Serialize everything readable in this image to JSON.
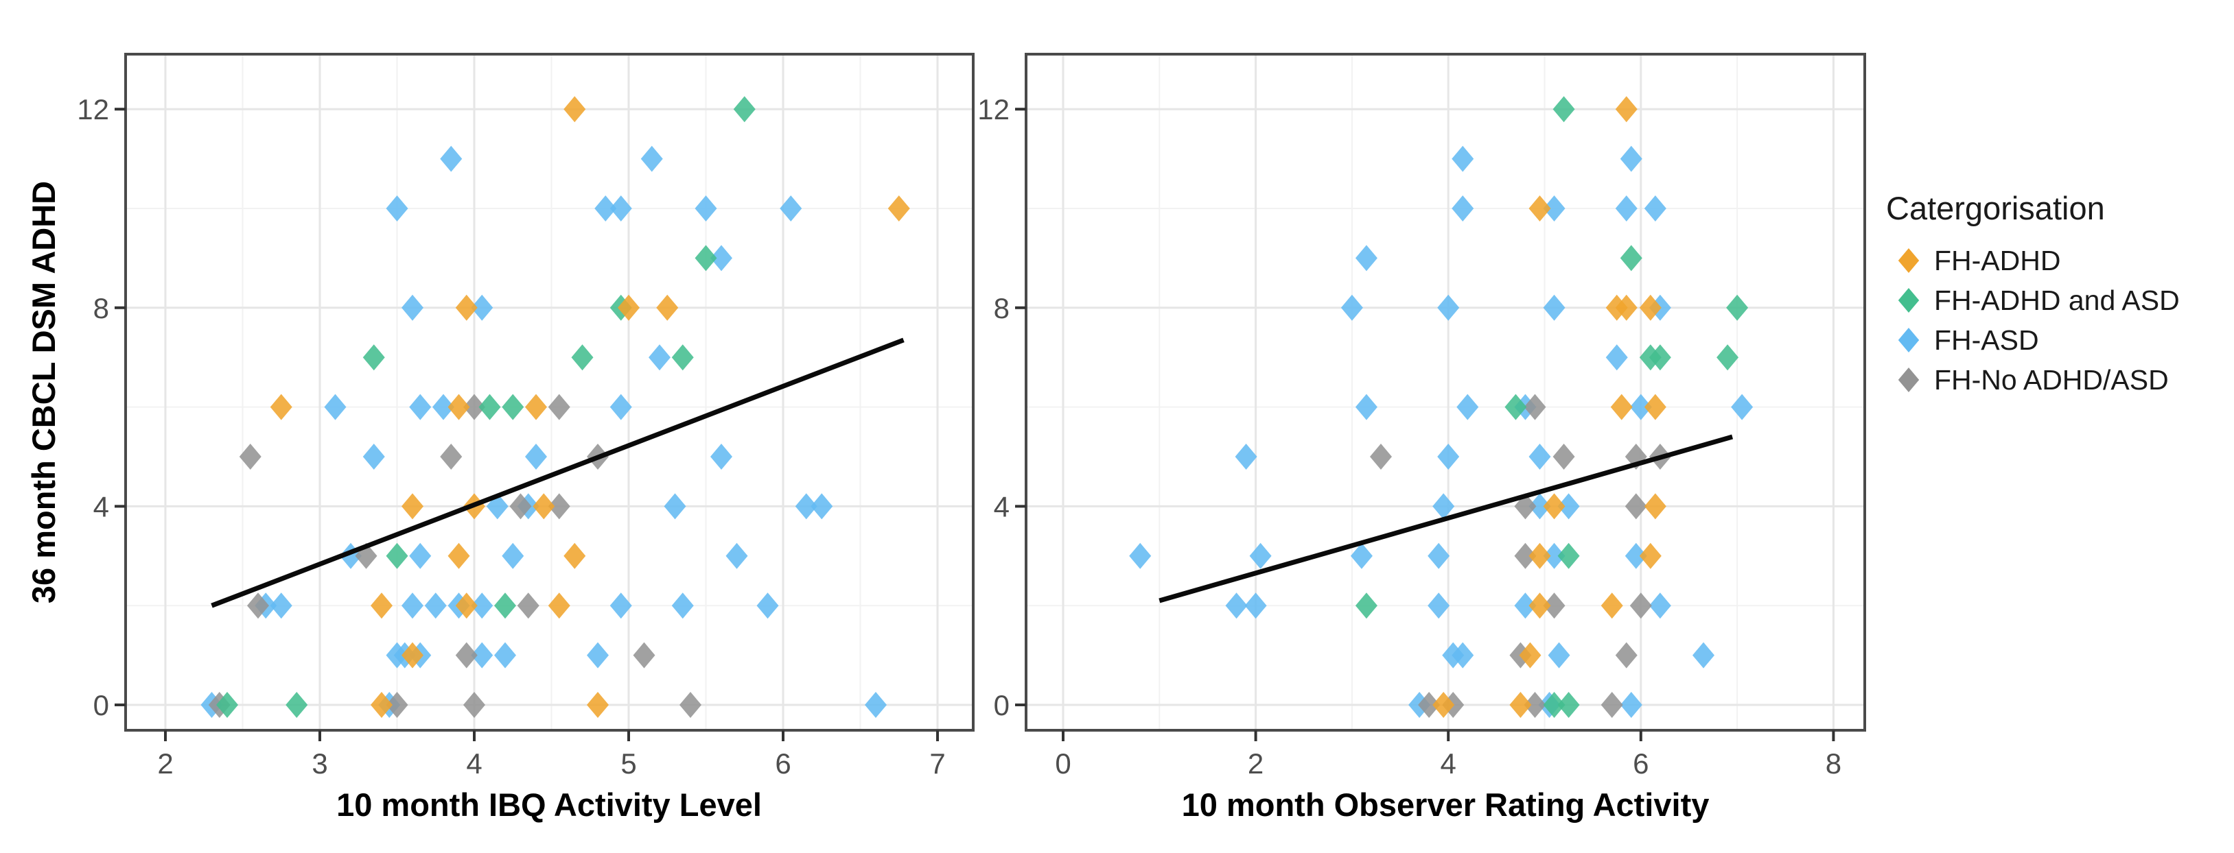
{
  "figure": {
    "background": "#ffffff"
  },
  "legend": {
    "title": "Catergorisation",
    "items": [
      {
        "label": "FH-ADHD",
        "category": "FH-ADHD"
      },
      {
        "label": "FH-ADHD and ASD",
        "category": "FH-ADHD and ASD"
      },
      {
        "label": "FH-ASD",
        "category": "FH-ASD"
      },
      {
        "label": "FH-No ADHD/ASD",
        "category": "FH-No ADHD/ASD"
      }
    ]
  },
  "colors": {
    "FH-ADHD": "#F0A42D",
    "FH-ADHD and ASD": "#43BE8E",
    "FH-ASD": "#63BAF2",
    "FH-No ADHD/ASD": "#939393",
    "trend_line": "#0a0a0a",
    "panel_border": "#4a4a4a",
    "grid_major": "#e6e6e6",
    "grid_minor": "#f2f2f2",
    "tick_text": "#4d4d4d",
    "axis_title": "#000000"
  },
  "chart_data": [
    {
      "type": "scatter",
      "panel": "left",
      "title": "",
      "xlabel": "10 month IBQ Activity Level",
      "ylabel": "36 month CBCL DSM ADHD",
      "xlim": [
        1.74,
        7.23
      ],
      "ylim": [
        -0.55,
        13.1
      ],
      "xticks": [
        2,
        3,
        4,
        5,
        6,
        7
      ],
      "xminor": [
        2.5,
        3.5,
        4.5,
        5.5,
        6.5
      ],
      "yticks": [
        0,
        4,
        8,
        12
      ],
      "yminor": [
        2,
        6,
        10
      ],
      "grid": true,
      "legend_position": "right",
      "trend_line": {
        "x1": 2.3,
        "y1": 2.0,
        "x2": 6.78,
        "y2": 7.35
      },
      "series": [
        {
          "name": "FH-ASD",
          "points": [
            [
              3.85,
              11
            ],
            [
              5.15,
              11
            ],
            [
              3.5,
              10
            ],
            [
              4.85,
              10
            ],
            [
              4.95,
              10
            ],
            [
              5.5,
              10
            ],
            [
              6.05,
              10
            ],
            [
              5.6,
              9
            ],
            [
              3.6,
              8
            ],
            [
              4.05,
              8
            ],
            [
              5.2,
              7
            ],
            [
              3.1,
              6
            ],
            [
              3.65,
              6
            ],
            [
              3.8,
              6
            ],
            [
              4.95,
              6
            ],
            [
              3.35,
              5
            ],
            [
              4.4,
              5
            ],
            [
              5.6,
              5
            ],
            [
              4.15,
              4
            ],
            [
              4.35,
              4
            ],
            [
              5.3,
              4
            ],
            [
              6.15,
              4
            ],
            [
              6.25,
              4
            ],
            [
              3.2,
              3
            ],
            [
              3.65,
              3
            ],
            [
              4.25,
              3
            ],
            [
              5.7,
              3
            ],
            [
              2.65,
              2
            ],
            [
              2.75,
              2
            ],
            [
              3.6,
              2
            ],
            [
              3.75,
              2
            ],
            [
              3.9,
              2
            ],
            [
              4.05,
              2
            ],
            [
              4.95,
              2
            ],
            [
              5.35,
              2
            ],
            [
              5.9,
              2
            ],
            [
              3.5,
              1
            ],
            [
              3.55,
              1
            ],
            [
              3.65,
              1
            ],
            [
              4.05,
              1
            ],
            [
              4.2,
              1
            ],
            [
              4.8,
              1
            ],
            [
              2.3,
              0
            ],
            [
              3.45,
              0
            ],
            [
              6.6,
              0
            ]
          ]
        },
        {
          "name": "FH-No ADHD/ASD",
          "points": [
            [
              4.0,
              6
            ],
            [
              4.55,
              6
            ],
            [
              2.55,
              5
            ],
            [
              3.85,
              5
            ],
            [
              4.8,
              5
            ],
            [
              4.3,
              4
            ],
            [
              4.55,
              4
            ],
            [
              3.3,
              3
            ],
            [
              2.6,
              2
            ],
            [
              4.35,
              2
            ],
            [
              3.95,
              1
            ],
            [
              5.1,
              1
            ],
            [
              2.35,
              0
            ],
            [
              3.5,
              0
            ],
            [
              4.0,
              0
            ],
            [
              5.4,
              0
            ]
          ]
        },
        {
          "name": "FH-ADHD and ASD",
          "points": [
            [
              5.75,
              12
            ],
            [
              5.5,
              9
            ],
            [
              4.95,
              8
            ],
            [
              3.35,
              7
            ],
            [
              4.7,
              7
            ],
            [
              5.35,
              7
            ],
            [
              4.1,
              6
            ],
            [
              4.25,
              6
            ],
            [
              3.5,
              3
            ],
            [
              4.2,
              2
            ],
            [
              2.4,
              0
            ],
            [
              2.85,
              0
            ]
          ]
        },
        {
          "name": "FH-ADHD",
          "points": [
            [
              4.65,
              12
            ],
            [
              6.75,
              10
            ],
            [
              3.95,
              8
            ],
            [
              5.0,
              8
            ],
            [
              5.25,
              8
            ],
            [
              2.75,
              6
            ],
            [
              3.9,
              6
            ],
            [
              4.4,
              6
            ],
            [
              3.6,
              4
            ],
            [
              4.0,
              4
            ],
            [
              4.45,
              4
            ],
            [
              3.9,
              3
            ],
            [
              4.65,
              3
            ],
            [
              3.4,
              2
            ],
            [
              3.95,
              2
            ],
            [
              4.55,
              2
            ],
            [
              3.6,
              1
            ],
            [
              3.4,
              0
            ],
            [
              4.8,
              0
            ]
          ]
        }
      ]
    },
    {
      "type": "scatter",
      "panel": "right",
      "title": "",
      "xlabel": "10 month Observer Rating Activity",
      "ylabel": "",
      "xlim": [
        -0.39,
        8.34
      ],
      "ylim": [
        -0.55,
        13.1
      ],
      "xticks": [
        0,
        2,
        4,
        6,
        8
      ],
      "xminor": [
        1,
        3,
        5,
        7
      ],
      "yticks": [
        0,
        4,
        8,
        12
      ],
      "yminor": [
        2,
        6,
        10
      ],
      "grid": true,
      "trend_line": {
        "x1": 1.0,
        "y1": 2.1,
        "x2": 6.95,
        "y2": 5.4
      },
      "series": [
        {
          "name": "FH-ASD",
          "points": [
            [
              4.15,
              11
            ],
            [
              5.9,
              11
            ],
            [
              4.15,
              10
            ],
            [
              5.1,
              10
            ],
            [
              5.85,
              10
            ],
            [
              6.15,
              10
            ],
            [
              3.15,
              9
            ],
            [
              3.0,
              8
            ],
            [
              4.0,
              8
            ],
            [
              5.1,
              8
            ],
            [
              6.2,
              8
            ],
            [
              5.75,
              7
            ],
            [
              3.15,
              6
            ],
            [
              4.2,
              6
            ],
            [
              4.8,
              6
            ],
            [
              6.0,
              6
            ],
            [
              7.05,
              6
            ],
            [
              1.9,
              5
            ],
            [
              4.0,
              5
            ],
            [
              4.95,
              5
            ],
            [
              3.95,
              4
            ],
            [
              4.95,
              4
            ],
            [
              5.25,
              4
            ],
            [
              0.8,
              3
            ],
            [
              2.05,
              3
            ],
            [
              3.1,
              3
            ],
            [
              3.9,
              3
            ],
            [
              5.1,
              3
            ],
            [
              5.95,
              3
            ],
            [
              1.8,
              2
            ],
            [
              2.0,
              2
            ],
            [
              3.9,
              2
            ],
            [
              4.8,
              2
            ],
            [
              6.2,
              2
            ],
            [
              4.05,
              1
            ],
            [
              4.15,
              1
            ],
            [
              5.15,
              1
            ],
            [
              6.65,
              1
            ],
            [
              3.7,
              0
            ],
            [
              5.05,
              0
            ],
            [
              5.9,
              0
            ]
          ]
        },
        {
          "name": "FH-No ADHD/ASD",
          "points": [
            [
              4.9,
              6
            ],
            [
              3.3,
              5
            ],
            [
              5.2,
              5
            ],
            [
              5.95,
              5
            ],
            [
              6.2,
              5
            ],
            [
              4.8,
              4
            ],
            [
              5.95,
              4
            ],
            [
              4.8,
              3
            ],
            [
              5.1,
              2
            ],
            [
              6.0,
              2
            ],
            [
              4.75,
              1
            ],
            [
              5.85,
              1
            ],
            [
              3.8,
              0
            ],
            [
              4.05,
              0
            ],
            [
              4.9,
              0
            ],
            [
              5.7,
              0
            ]
          ]
        },
        {
          "name": "FH-ADHD and ASD",
          "points": [
            [
              5.2,
              12
            ],
            [
              5.9,
              9
            ],
            [
              7.0,
              8
            ],
            [
              6.1,
              7
            ],
            [
              6.2,
              7
            ],
            [
              6.9,
              7
            ],
            [
              4.7,
              6
            ],
            [
              5.25,
              3
            ],
            [
              3.15,
              2
            ],
            [
              5.1,
              0
            ],
            [
              5.25,
              0
            ]
          ]
        },
        {
          "name": "FH-ADHD",
          "points": [
            [
              5.85,
              12
            ],
            [
              4.95,
              10
            ],
            [
              5.75,
              8
            ],
            [
              5.85,
              8
            ],
            [
              6.1,
              8
            ],
            [
              5.8,
              6
            ],
            [
              6.15,
              6
            ],
            [
              5.1,
              4
            ],
            [
              6.15,
              4
            ],
            [
              4.95,
              3
            ],
            [
              6.1,
              3
            ],
            [
              4.95,
              2
            ],
            [
              5.7,
              2
            ],
            [
              4.85,
              1
            ],
            [
              3.95,
              0
            ],
            [
              4.75,
              0
            ]
          ]
        }
      ]
    }
  ]
}
